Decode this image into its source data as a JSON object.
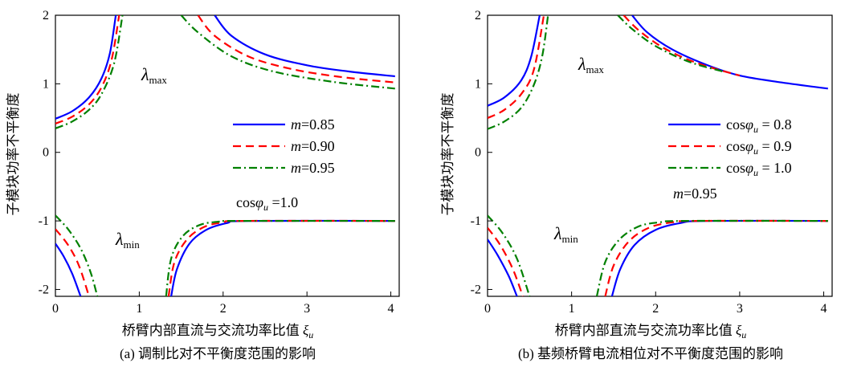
{
  "chart_data": [
    {
      "type": "line",
      "caption": "(a) 调制比对不平衡度范围的影响",
      "xlabel": "桥臂内部直流与交流功率比值 ξu",
      "ylabel": "子模块功率不平衡度",
      "xlim": [
        0,
        4.1
      ],
      "ylim": [
        -2.1,
        2
      ],
      "xticks": [
        0,
        1,
        2,
        3,
        4
      ],
      "yticks": [
        2,
        1,
        0,
        -1,
        -2
      ],
      "grid": false,
      "legend": {
        "placement": "right-middle",
        "entries": [
          {
            "label": "m=0.85",
            "color": "#0000ff",
            "dash": "solid"
          },
          {
            "label": "m=0.90",
            "color": "#ff0000",
            "dash": "dashed"
          },
          {
            "label": "m=0.95",
            "color": "#008000",
            "dash": "dashdot"
          }
        ]
      },
      "annotations": [
        "λmax",
        "λmin",
        "cosφu =1.0"
      ],
      "series": [
        {
          "color": "#0000ff",
          "dash": "solid",
          "segment": "upper-left",
          "points": [
            [
              0,
              0.49
            ],
            [
              0.2,
              0.6
            ],
            [
              0.4,
              0.8
            ],
            [
              0.55,
              1.08
            ],
            [
              0.65,
              1.45
            ],
            [
              0.72,
              2.0
            ]
          ]
        },
        {
          "color": "#ff0000",
          "dash": "dashed",
          "segment": "upper-left",
          "points": [
            [
              0,
              0.42
            ],
            [
              0.2,
              0.52
            ],
            [
              0.4,
              0.7
            ],
            [
              0.55,
              0.95
            ],
            [
              0.67,
              1.35
            ],
            [
              0.76,
              2.0
            ]
          ]
        },
        {
          "color": "#008000",
          "dash": "dashdot",
          "segment": "upper-left",
          "points": [
            [
              0,
              0.35
            ],
            [
              0.2,
              0.45
            ],
            [
              0.4,
              0.62
            ],
            [
              0.55,
              0.85
            ],
            [
              0.7,
              1.3
            ],
            [
              0.8,
              2.0
            ]
          ]
        },
        {
          "color": "#0000ff",
          "dash": "solid",
          "segment": "upper-right",
          "points": [
            [
              1.9,
              2.0
            ],
            [
              2.1,
              1.7
            ],
            [
              2.5,
              1.43
            ],
            [
              3.0,
              1.27
            ],
            [
              3.5,
              1.18
            ],
            [
              4.05,
              1.11
            ]
          ]
        },
        {
          "color": "#ff0000",
          "dash": "dashed",
          "segment": "upper-right",
          "points": [
            [
              1.7,
              2.0
            ],
            [
              1.9,
              1.7
            ],
            [
              2.3,
              1.4
            ],
            [
              2.8,
              1.22
            ],
            [
              3.4,
              1.1
            ],
            [
              4.05,
              1.02
            ]
          ]
        },
        {
          "color": "#008000",
          "dash": "dashdot",
          "segment": "upper-right",
          "points": [
            [
              1.5,
              2.0
            ],
            [
              1.7,
              1.75
            ],
            [
              2.1,
              1.4
            ],
            [
              2.6,
              1.18
            ],
            [
              3.3,
              1.03
            ],
            [
              4.05,
              0.93
            ]
          ]
        },
        {
          "color": "#0000ff",
          "dash": "solid",
          "segment": "lower-left",
          "points": [
            [
              0,
              -1.33
            ],
            [
              0.1,
              -1.52
            ],
            [
              0.2,
              -1.77
            ],
            [
              0.3,
              -2.1
            ]
          ]
        },
        {
          "color": "#ff0000",
          "dash": "dashed",
          "segment": "lower-left",
          "points": [
            [
              0,
              -1.12
            ],
            [
              0.15,
              -1.35
            ],
            [
              0.28,
              -1.65
            ],
            [
              0.4,
              -2.1
            ]
          ]
        },
        {
          "color": "#008000",
          "dash": "dashdot",
          "segment": "lower-left",
          "points": [
            [
              0,
              -0.92
            ],
            [
              0.15,
              -1.12
            ],
            [
              0.3,
              -1.4
            ],
            [
              0.42,
              -1.75
            ],
            [
              0.5,
              -2.1
            ]
          ]
        },
        {
          "color": "#0000ff",
          "dash": "solid",
          "segment": "lower-right",
          "points": [
            [
              1.38,
              -2.1
            ],
            [
              1.45,
              -1.7
            ],
            [
              1.6,
              -1.33
            ],
            [
              1.8,
              -1.13
            ],
            [
              2.05,
              -1.03
            ],
            [
              2.3,
              -1.0
            ],
            [
              4.05,
              -1.0
            ]
          ]
        },
        {
          "color": "#ff0000",
          "dash": "dashed",
          "segment": "lower-right",
          "points": [
            [
              1.35,
              -2.1
            ],
            [
              1.42,
              -1.6
            ],
            [
              1.57,
              -1.27
            ],
            [
              1.77,
              -1.09
            ],
            [
              2.0,
              -1.02
            ],
            [
              2.25,
              -1.0
            ],
            [
              4.05,
              -1.0
            ]
          ]
        },
        {
          "color": "#008000",
          "dash": "dashdot",
          "segment": "lower-right",
          "points": [
            [
              1.32,
              -2.1
            ],
            [
              1.38,
              -1.55
            ],
            [
              1.52,
              -1.22
            ],
            [
              1.72,
              -1.06
            ],
            [
              1.95,
              -1.01
            ],
            [
              2.2,
              -1.0
            ],
            [
              4.05,
              -1.0
            ]
          ]
        }
      ]
    },
    {
      "type": "line",
      "caption": "(b) 基频桥臂电流相位对不平衡度范围的影响",
      "xlabel": "桥臂内部直流与交流功率比值 ξu",
      "ylabel": "子模块功率不平衡度",
      "xlim": [
        0,
        4.1
      ],
      "ylim": [
        -2.1,
        2
      ],
      "xticks": [
        0,
        1,
        2,
        3,
        4
      ],
      "yticks": [
        2,
        1,
        0,
        -1,
        -2
      ],
      "grid": false,
      "legend": {
        "placement": "right-middle",
        "entries": [
          {
            "label": "cosφu = 0.8",
            "color": "#0000ff",
            "dash": "solid"
          },
          {
            "label": "cosφu = 0.9",
            "color": "#ff0000",
            "dash": "dashed"
          },
          {
            "label": "cosφu = 1.0",
            "color": "#008000",
            "dash": "dashdot"
          }
        ]
      },
      "annotations": [
        "λmax",
        "λmin",
        "m=0.95"
      ],
      "series": [
        {
          "color": "#0000ff",
          "dash": "solid",
          "segment": "upper-left",
          "points": [
            [
              0,
              0.68
            ],
            [
              0.2,
              0.8
            ],
            [
              0.4,
              1.05
            ],
            [
              0.52,
              1.4
            ],
            [
              0.62,
              2.0
            ]
          ]
        },
        {
          "color": "#ff0000",
          "dash": "dashed",
          "segment": "upper-left",
          "points": [
            [
              0,
              0.5
            ],
            [
              0.2,
              0.62
            ],
            [
              0.4,
              0.85
            ],
            [
              0.55,
              1.2
            ],
            [
              0.67,
              2.0
            ]
          ]
        },
        {
          "color": "#008000",
          "dash": "dashdot",
          "segment": "upper-left",
          "points": [
            [
              0,
              0.34
            ],
            [
              0.2,
              0.45
            ],
            [
              0.4,
              0.65
            ],
            [
              0.55,
              0.98
            ],
            [
              0.65,
              1.4
            ],
            [
              0.72,
              2.0
            ]
          ]
        },
        {
          "color": "#0000ff",
          "dash": "solid",
          "segment": "upper-right",
          "points": [
            [
              1.72,
              2.0
            ],
            [
              1.9,
              1.75
            ],
            [
              2.2,
              1.5
            ],
            [
              2.6,
              1.28
            ],
            [
              3.0,
              1.12
            ],
            [
              3.5,
              1.02
            ],
            [
              4.05,
              0.93
            ]
          ]
        },
        {
          "color": "#ff0000",
          "dash": "dashed",
          "segment": "upper-right",
          "points": [
            [
              1.62,
              2.0
            ],
            [
              1.8,
              1.78
            ],
            [
              2.1,
              1.52
            ],
            [
              2.5,
              1.3
            ],
            [
              3.0,
              1.12
            ]
          ]
        },
        {
          "color": "#008000",
          "dash": "dashdot",
          "segment": "upper-right",
          "points": [
            [
              1.55,
              2.0
            ],
            [
              1.72,
              1.8
            ],
            [
              2.0,
              1.55
            ],
            [
              2.4,
              1.32
            ],
            [
              2.8,
              1.18
            ]
          ]
        },
        {
          "color": "#0000ff",
          "dash": "solid",
          "segment": "lower-left",
          "points": [
            [
              0,
              -1.27
            ],
            [
              0.12,
              -1.5
            ],
            [
              0.25,
              -1.8
            ],
            [
              0.35,
              -2.1
            ]
          ]
        },
        {
          "color": "#ff0000",
          "dash": "dashed",
          "segment": "lower-left",
          "points": [
            [
              0,
              -1.1
            ],
            [
              0.15,
              -1.35
            ],
            [
              0.3,
              -1.7
            ],
            [
              0.42,
              -2.1
            ]
          ]
        },
        {
          "color": "#008000",
          "dash": "dashdot",
          "segment": "lower-left",
          "points": [
            [
              0,
              -0.92
            ],
            [
              0.18,
              -1.18
            ],
            [
              0.35,
              -1.55
            ],
            [
              0.5,
              -2.1
            ]
          ]
        },
        {
          "color": "#0000ff",
          "dash": "solid",
          "segment": "lower-right",
          "points": [
            [
              1.48,
              -2.1
            ],
            [
              1.58,
              -1.7
            ],
            [
              1.75,
              -1.35
            ],
            [
              2.0,
              -1.13
            ],
            [
              2.3,
              -1.03
            ],
            [
              2.6,
              -1.0
            ],
            [
              4.05,
              -1.0
            ]
          ]
        },
        {
          "color": "#ff0000",
          "dash": "dashed",
          "segment": "lower-right",
          "points": [
            [
              1.4,
              -2.1
            ],
            [
              1.5,
              -1.65
            ],
            [
              1.68,
              -1.3
            ],
            [
              1.92,
              -1.1
            ],
            [
              2.2,
              -1.02
            ],
            [
              2.5,
              -1.0
            ],
            [
              4.05,
              -1.0
            ]
          ]
        },
        {
          "color": "#008000",
          "dash": "dashdot",
          "segment": "lower-right",
          "points": [
            [
              1.3,
              -2.1
            ],
            [
              1.4,
              -1.6
            ],
            [
              1.57,
              -1.27
            ],
            [
              1.8,
              -1.08
            ],
            [
              2.05,
              -1.02
            ],
            [
              2.35,
              -1.0
            ],
            [
              4.05,
              -1.0
            ]
          ]
        }
      ]
    }
  ]
}
